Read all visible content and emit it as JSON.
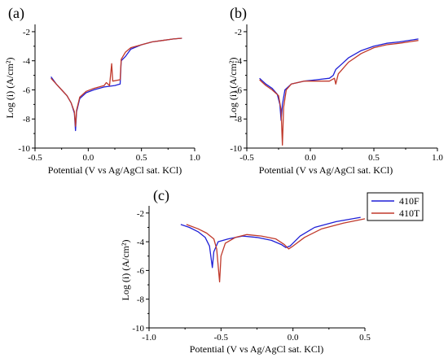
{
  "colors": {
    "410F": "#1f1fd6",
    "410T": "#c0392b",
    "axis": "#000000"
  },
  "legend": {
    "items": [
      {
        "label": "410F",
        "color": "#1f1fd6"
      },
      {
        "label": "410T",
        "color": "#c0392b"
      }
    ]
  },
  "chart_data": [
    {
      "panel": "(a)",
      "type": "line",
      "xlabel": "Potential (V vs Ag/AgCl sat. KCl)",
      "ylabel": "Log (i) (A/cm²)",
      "xlim": [
        -0.5,
        1.0
      ],
      "ylim": [
        -10,
        -1.5
      ],
      "xticks": [
        "-0.5",
        "0.0",
        "0.5",
        "1.0"
      ],
      "yticks": [
        "-2",
        "-4",
        "-6",
        "-8",
        "-10"
      ],
      "series": [
        {
          "name": "410F",
          "points": [
            [
              -0.35,
              -5.1
            ],
            [
              -0.3,
              -5.6
            ],
            [
              -0.25,
              -6.0
            ],
            [
              -0.2,
              -6.4
            ],
            [
              -0.16,
              -6.9
            ],
            [
              -0.13,
              -7.6
            ],
            [
              -0.12,
              -8.8
            ],
            [
              -0.11,
              -7.5
            ],
            [
              -0.08,
              -6.6
            ],
            [
              -0.02,
              -6.2
            ],
            [
              0.05,
              -6.0
            ],
            [
              0.15,
              -5.8
            ],
            [
              0.25,
              -5.7
            ],
            [
              0.3,
              -5.6
            ],
            [
              0.31,
              -4.0
            ],
            [
              0.35,
              -3.7
            ],
            [
              0.4,
              -3.2
            ],
            [
              0.5,
              -2.9
            ],
            [
              0.6,
              -2.7
            ],
            [
              0.7,
              -2.6
            ],
            [
              0.8,
              -2.5
            ],
            [
              0.88,
              -2.45
            ]
          ]
        },
        {
          "name": "410T",
          "points": [
            [
              -0.35,
              -5.2
            ],
            [
              -0.3,
              -5.6
            ],
            [
              -0.25,
              -6.0
            ],
            [
              -0.2,
              -6.4
            ],
            [
              -0.16,
              -6.9
            ],
            [
              -0.13,
              -7.5
            ],
            [
              -0.12,
              -8.5
            ],
            [
              -0.11,
              -7.4
            ],
            [
              -0.08,
              -6.5
            ],
            [
              -0.02,
              -6.1
            ],
            [
              0.05,
              -5.9
            ],
            [
              0.15,
              -5.7
            ],
            [
              0.17,
              -5.5
            ],
            [
              0.2,
              -5.7
            ],
            [
              0.22,
              -4.2
            ],
            [
              0.23,
              -5.4
            ],
            [
              0.3,
              -5.3
            ],
            [
              0.31,
              -3.9
            ],
            [
              0.35,
              -3.4
            ],
            [
              0.4,
              -3.1
            ],
            [
              0.5,
              -2.9
            ],
            [
              0.6,
              -2.7
            ],
            [
              0.7,
              -2.6
            ],
            [
              0.8,
              -2.5
            ],
            [
              0.88,
              -2.45
            ]
          ]
        }
      ]
    },
    {
      "panel": "(b)",
      "type": "line",
      "xlabel": "Potential (V vs Ag/AgCl sat. KCl)",
      "ylabel": "Log (i) (A/cm²)",
      "xlim": [
        -0.5,
        1.0
      ],
      "ylim": [
        -10,
        -1.5
      ],
      "xticks": [
        "-0.5",
        "0.0",
        "0.5",
        "1.0"
      ],
      "yticks": [
        "-2",
        "-4",
        "-6",
        "-8",
        "-10"
      ],
      "series": [
        {
          "name": "410F",
          "points": [
            [
              -0.4,
              -5.2
            ],
            [
              -0.35,
              -5.6
            ],
            [
              -0.3,
              -5.9
            ],
            [
              -0.26,
              -6.3
            ],
            [
              -0.24,
              -7.0
            ],
            [
              -0.23,
              -8.1
            ],
            [
              -0.22,
              -7.0
            ],
            [
              -0.2,
              -6.0
            ],
            [
              -0.15,
              -5.6
            ],
            [
              -0.05,
              -5.4
            ],
            [
              0.05,
              -5.3
            ],
            [
              0.15,
              -5.2
            ],
            [
              0.18,
              -5.0
            ],
            [
              0.2,
              -4.6
            ],
            [
              0.25,
              -4.2
            ],
            [
              0.3,
              -3.8
            ],
            [
              0.4,
              -3.3
            ],
            [
              0.5,
              -3.0
            ],
            [
              0.6,
              -2.8
            ],
            [
              0.7,
              -2.7
            ],
            [
              0.85,
              -2.5
            ]
          ]
        },
        {
          "name": "410T",
          "points": [
            [
              -0.4,
              -5.3
            ],
            [
              -0.35,
              -5.7
            ],
            [
              -0.3,
              -6.0
            ],
            [
              -0.25,
              -6.4
            ],
            [
              -0.23,
              -7.4
            ],
            [
              -0.22,
              -9.8
            ],
            [
              -0.21,
              -7.2
            ],
            [
              -0.19,
              -6.0
            ],
            [
              -0.15,
              -5.6
            ],
            [
              -0.05,
              -5.4
            ],
            [
              0.05,
              -5.4
            ],
            [
              0.15,
              -5.4
            ],
            [
              0.19,
              -5.2
            ],
            [
              0.2,
              -5.6
            ],
            [
              0.22,
              -4.9
            ],
            [
              0.25,
              -4.6
            ],
            [
              0.3,
              -4.1
            ],
            [
              0.4,
              -3.5
            ],
            [
              0.5,
              -3.1
            ],
            [
              0.6,
              -2.9
            ],
            [
              0.7,
              -2.8
            ],
            [
              0.85,
              -2.6
            ]
          ]
        }
      ]
    },
    {
      "panel": "(c)",
      "type": "line",
      "xlabel": "Potential (V vs Ag/AgCl sat. KCl)",
      "ylabel": "Log (i) (A/cm²)",
      "xlim": [
        -1.0,
        0.5
      ],
      "ylim": [
        -10,
        -1.5
      ],
      "xticks": [
        "-1.0",
        "-0.5",
        "0.0",
        "0.5"
      ],
      "yticks": [
        "-2",
        "-4",
        "-6",
        "-8",
        "-10"
      ],
      "series": [
        {
          "name": "410F",
          "points": [
            [
              -0.78,
              -2.8
            ],
            [
              -0.72,
              -3.0
            ],
            [
              -0.66,
              -3.3
            ],
            [
              -0.61,
              -3.7
            ],
            [
              -0.58,
              -4.3
            ],
            [
              -0.56,
              -5.8
            ],
            [
              -0.55,
              -4.7
            ],
            [
              -0.52,
              -4.0
            ],
            [
              -0.45,
              -3.8
            ],
            [
              -0.35,
              -3.6
            ],
            [
              -0.25,
              -3.7
            ],
            [
              -0.15,
              -3.9
            ],
            [
              -0.08,
              -4.2
            ],
            [
              -0.05,
              -4.4
            ],
            [
              -0.02,
              -4.3
            ],
            [
              0.05,
              -3.6
            ],
            [
              0.15,
              -3.0
            ],
            [
              0.3,
              -2.6
            ],
            [
              0.47,
              -2.3
            ]
          ]
        },
        {
          "name": "410T",
          "points": [
            [
              -0.74,
              -2.8
            ],
            [
              -0.66,
              -3.1
            ],
            [
              -0.6,
              -3.4
            ],
            [
              -0.55,
              -3.8
            ],
            [
              -0.53,
              -4.5
            ],
            [
              -0.51,
              -6.8
            ],
            [
              -0.5,
              -5.0
            ],
            [
              -0.47,
              -4.1
            ],
            [
              -0.4,
              -3.7
            ],
            [
              -0.32,
              -3.5
            ],
            [
              -0.22,
              -3.6
            ],
            [
              -0.12,
              -3.8
            ],
            [
              -0.06,
              -4.2
            ],
            [
              -0.03,
              -4.5
            ],
            [
              0.0,
              -4.3
            ],
            [
              0.08,
              -3.7
            ],
            [
              0.2,
              -3.1
            ],
            [
              0.35,
              -2.7
            ],
            [
              0.5,
              -2.4
            ]
          ]
        }
      ]
    }
  ]
}
